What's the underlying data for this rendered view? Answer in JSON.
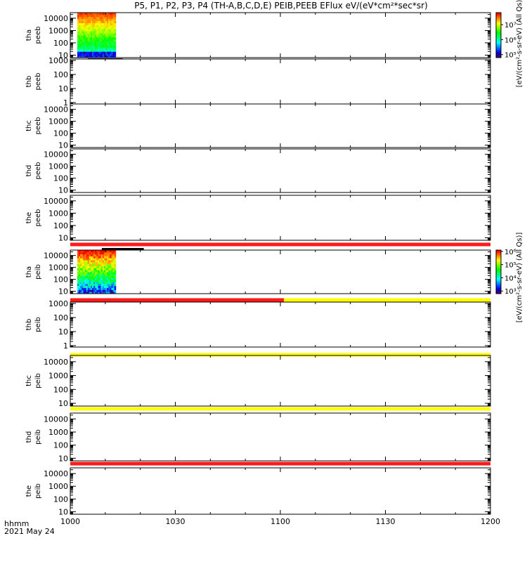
{
  "title": "P5, P1, P2, P3, P4 (TH-A,B,C,D,E) PEIB,PEEB EFlux eV/(eV*cm²*sec*sr)",
  "footer": {
    "format_label": "hhmm",
    "date_label": "2021 May 24"
  },
  "colors": {
    "red_bar": "#ff1a1a",
    "yellow_bar": "#ffff00",
    "black_bar": "#000000"
  },
  "chart_data": {
    "type": "heatmap",
    "x_axis": {
      "range": [
        "10:00",
        "12:00"
      ],
      "tick_labels": [
        "1000",
        "1030",
        "1100",
        "1130",
        "1200"
      ]
    },
    "panels": [
      {
        "probe": "tha",
        "product": "peeb",
        "yticks": [
          "10",
          "100",
          "1000",
          "10000"
        ],
        "ylog": [
          0.8,
          4.45
        ],
        "data_range": [
          "10:02",
          "10:13"
        ],
        "status_bar": null
      },
      {
        "probe": "thb",
        "product": "peeb",
        "yticks": [
          "1",
          "10",
          "100",
          "1000"
        ],
        "ylog": [
          -0.1,
          3.1
        ],
        "data_range": null,
        "status_bar": null
      },
      {
        "probe": "thc",
        "product": "peeb",
        "yticks": [
          "10",
          "100",
          "1000",
          "10000"
        ],
        "ylog": [
          0.8,
          4.45
        ],
        "data_range": null,
        "status_bar": null
      },
      {
        "probe": "thd",
        "product": "peeb",
        "yticks": [
          "10",
          "100",
          "1000",
          "10000"
        ],
        "ylog": [
          0.8,
          4.45
        ],
        "data_range": null,
        "status_bar": null
      },
      {
        "probe": "the",
        "product": "peeb",
        "yticks": [
          "10",
          "100",
          "1000",
          "10000"
        ],
        "ylog": [
          0.8,
          4.45
        ],
        "data_range": null,
        "status_bar": {
          "segments": [
            {
              "from": "10:00",
              "to": "12:00",
              "color": "red"
            }
          ]
        }
      },
      {
        "probe": "tha",
        "product": "peib",
        "yticks": [
          "10",
          "100",
          "1000",
          "10000"
        ],
        "ylog": [
          0.8,
          4.45
        ],
        "data_range": [
          "10:02",
          "10:13"
        ],
        "status_bar": {
          "segments": [
            {
              "from": "10:00",
              "to": "11:01",
              "color": "red"
            },
            {
              "from": "11:01",
              "to": "12:00",
              "color": "yellow"
            }
          ]
        }
      },
      {
        "probe": "thb",
        "product": "peib",
        "yticks": [
          "1",
          "10",
          "100",
          "1000"
        ],
        "ylog": [
          -0.1,
          3.1
        ],
        "data_range": null,
        "status_bar": {
          "segments": [
            {
              "from": "10:00",
              "to": "12:00",
              "color": "yellow"
            }
          ]
        }
      },
      {
        "probe": "thc",
        "product": "peib",
        "yticks": [
          "10",
          "100",
          "1000",
          "10000"
        ],
        "ylog": [
          0.8,
          4.45
        ],
        "data_range": null,
        "status_bar": {
          "segments": [
            {
              "from": "10:00",
              "to": "12:00",
              "color": "yellow"
            }
          ]
        }
      },
      {
        "probe": "thd",
        "product": "peib",
        "yticks": [
          "10",
          "100",
          "1000",
          "10000"
        ],
        "ylog": [
          0.8,
          4.45
        ],
        "data_range": null,
        "status_bar": {
          "segments": [
            {
              "from": "10:00",
              "to": "12:00",
              "color": "red"
            }
          ]
        }
      },
      {
        "probe": "the",
        "product": "peib",
        "yticks": [
          "10",
          "100",
          "1000",
          "10000"
        ],
        "ylog": [
          0.8,
          4.45
        ],
        "data_range": null,
        "status_bar": null
      }
    ],
    "colorbars": [
      {
        "label": "[eV/(cm²-s-sr-eV) (All Qs)]",
        "ticks": [
          "10⁵",
          "10⁶",
          "10⁷"
        ],
        "log_range": [
          4.8,
          7.8
        ]
      },
      {
        "label": "[eV/(cm²-s-sr-eV) (All Qs)]",
        "ticks": [
          "10³",
          "10⁴",
          "10⁵",
          "10⁶"
        ],
        "log_range": [
          2.8,
          6.1
        ]
      }
    ]
  }
}
